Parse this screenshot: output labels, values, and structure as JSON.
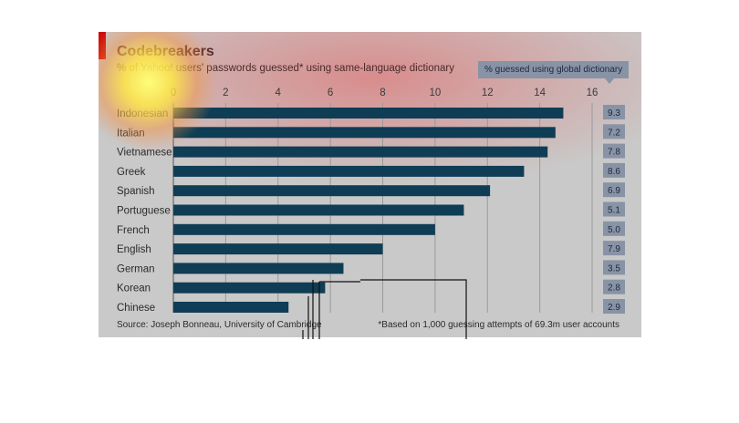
{
  "title": "Codebreakers",
  "subtitle": "% of Yahoo! users' passwords guessed* using same-language dictionary",
  "global_badge_label": "% guessed using global dictionary",
  "source": "Source: Joseph Bonneau, University of Cambridge",
  "footnote": "*Based on 1,000 guessing attempts of 69.3m user accounts",
  "colors": {
    "bar": "#0f3d55",
    "badge": "#8893a6",
    "gridline": "#9a9a9a",
    "accent_red": "#cc0a0a"
  },
  "chart_data": {
    "type": "bar",
    "orientation": "horizontal",
    "title": "Codebreakers",
    "subtitle": "% of Yahoo! users' passwords guessed* using same-language dictionary",
    "categories": [
      "Indonesian",
      "Italian",
      "Vietnamese",
      "Greek",
      "Spanish",
      "Portuguese",
      "French",
      "English",
      "German",
      "Korean",
      "Chinese"
    ],
    "values": [
      14.9,
      14.6,
      14.3,
      13.4,
      12.1,
      11.1,
      10.0,
      8.0,
      6.5,
      5.8,
      4.4
    ],
    "global_values": [
      "9.3",
      "7.2",
      "7.8",
      "8.6",
      "6.9",
      "5.1",
      "5.0",
      "7.9",
      "3.5",
      "2.8",
      "2.9"
    ],
    "xlim": [
      0,
      16
    ],
    "xticks": [
      0,
      2,
      4,
      6,
      8,
      10,
      12,
      14,
      16
    ],
    "grid": true,
    "axis_position": "top"
  }
}
